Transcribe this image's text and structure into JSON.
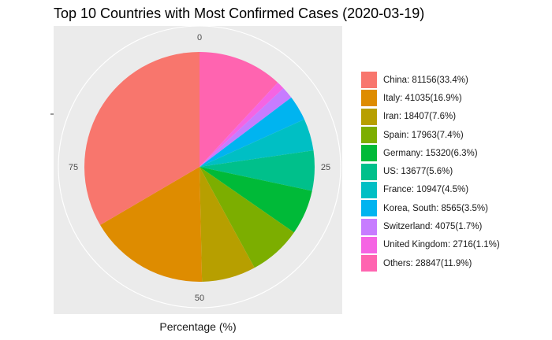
{
  "chart_data": {
    "type": "pie",
    "title": "Top 10 Countries with Most Confirmed Cases (2020-03-19)",
    "xlabel": "Percentage (%)",
    "ylabel": "",
    "theta_ticks": [
      "0",
      "25",
      "50",
      "75"
    ],
    "slices": [
      {
        "country": "China",
        "value": 81156,
        "percent": 33.4,
        "label": "China: 81156(33.4%)",
        "color": "#F8766D"
      },
      {
        "country": "Italy",
        "value": 41035,
        "percent": 16.9,
        "label": "Italy: 41035(16.9%)",
        "color": "#DE8C00"
      },
      {
        "country": "Iran",
        "value": 18407,
        "percent": 7.6,
        "label": "Iran: 18407(7.6%)",
        "color": "#B79F00"
      },
      {
        "country": "Spain",
        "value": 17963,
        "percent": 7.4,
        "label": "Spain: 17963(7.4%)",
        "color": "#7CAE00"
      },
      {
        "country": "Germany",
        "value": 15320,
        "percent": 6.3,
        "label": "Germany: 15320(6.3%)",
        "color": "#00BA38"
      },
      {
        "country": "US",
        "value": 13677,
        "percent": 5.6,
        "label": "US: 13677(5.6%)",
        "color": "#00C08B"
      },
      {
        "country": "France",
        "value": 10947,
        "percent": 4.5,
        "label": "France: 10947(4.5%)",
        "color": "#00BFC4"
      },
      {
        "country": "Korea, South",
        "value": 8565,
        "percent": 3.5,
        "label": "Korea, South: 8565(3.5%)",
        "color": "#00B4F0"
      },
      {
        "country": "Switzerland",
        "value": 4075,
        "percent": 1.7,
        "label": "Switzerland: 4075(1.7%)",
        "color": "#C77CFF"
      },
      {
        "country": "United Kingdom",
        "value": 2716,
        "percent": 1.1,
        "label": "United Kingdom: 2716(1.1%)",
        "color": "#F564E3"
      },
      {
        "country": "Others",
        "value": 28847,
        "percent": 11.9,
        "label": "Others: 28847(11.9%)",
        "color": "#FF64B0"
      }
    ],
    "clockwise_draw_order": [
      "Others",
      "United Kingdom",
      "Switzerland",
      "Korea, South",
      "France",
      "US",
      "Germany",
      "Spain",
      "Iran",
      "Italy",
      "China"
    ],
    "legend_position": "right",
    "panel_background": "#EBEBEB",
    "grid": true
  }
}
